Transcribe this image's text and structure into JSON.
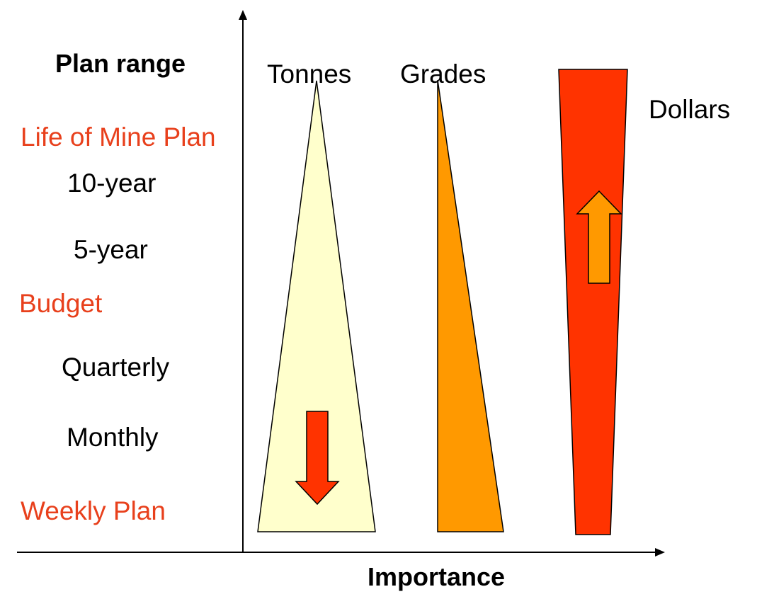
{
  "plan_range_title": "Plan range",
  "axis_label": "Importance",
  "ranges": [
    {
      "label": "Life of Mine Plan",
      "color": "#e8401c"
    },
    {
      "label": "10-year",
      "color": "#000000"
    },
    {
      "label": "5-year",
      "color": "#000000"
    },
    {
      "label": "Budget",
      "color": "#e8401c"
    },
    {
      "label": "Quarterly",
      "color": "#000000"
    },
    {
      "label": "Monthly",
      "color": "#000000"
    },
    {
      "label": "Weekly Plan",
      "color": "#e8401c"
    }
  ],
  "columns": [
    {
      "label": "Tonnes",
      "fill": "#ffffcc",
      "trend": "down"
    },
    {
      "label": "Grades",
      "fill": "#ff9900",
      "trend": "none"
    },
    {
      "label": "Dollars",
      "fill": "#ff3300",
      "trend": "up"
    }
  ],
  "colors": {
    "accent_text": "#e8401c",
    "down_arrow": "#ff3300",
    "up_arrow": "#ff9900",
    "axis": "#000000"
  }
}
